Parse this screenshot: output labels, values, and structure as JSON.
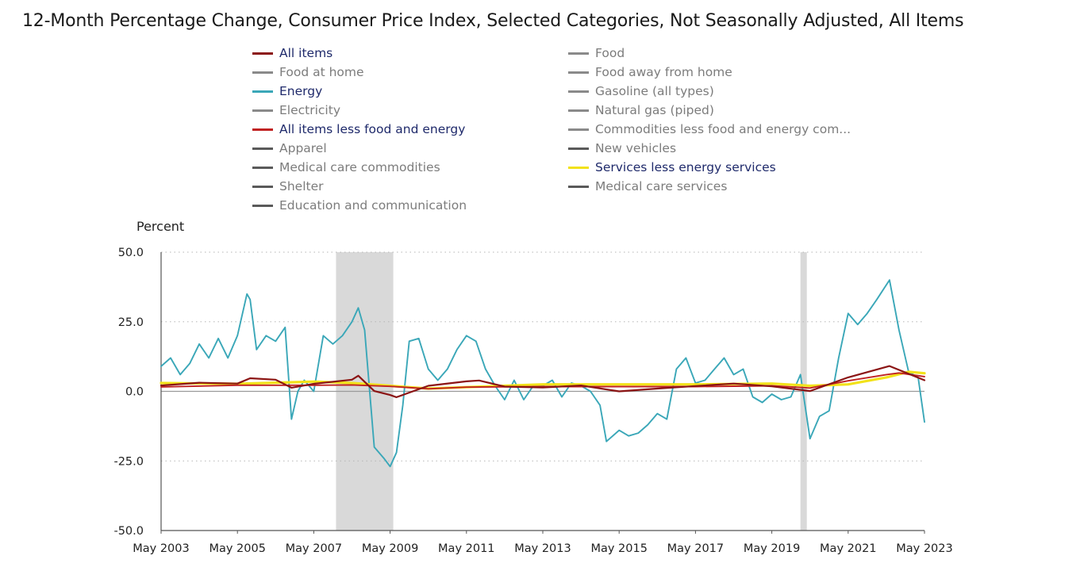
{
  "title": "12-Month Percentage Change, Consumer Price Index, Selected Categories, Not Seasonally Adjusted, All Items",
  "chart_data": {
    "type": "line",
    "ylabel": "Percent",
    "xlabel": "",
    "ylim": [
      -50,
      50
    ],
    "y_ticks": [
      "50.0",
      "25.0",
      "0.0",
      "-25.0",
      "-50.0"
    ],
    "x_ticks": [
      "May 2003",
      "May 2005",
      "May 2007",
      "May 2009",
      "May 2011",
      "May 2013",
      "May 2015",
      "May 2017",
      "May 2019",
      "May 2021",
      "May 2023"
    ],
    "x_range": [
      "2003-05",
      "2023-05"
    ],
    "grid": "horizontal dotted",
    "recessions": [
      {
        "start": "2007-12",
        "end": "2009-06"
      },
      {
        "start": "2020-02",
        "end": "2020-04"
      }
    ],
    "legend": [
      {
        "name": "All items",
        "color": "#8b1414",
        "active": true
      },
      {
        "name": "Food",
        "color": "#8a8a8a",
        "active": false
      },
      {
        "name": "Food at home",
        "color": "#8a8a8a",
        "active": false
      },
      {
        "name": "Food away from home",
        "color": "#8a8a8a",
        "active": false
      },
      {
        "name": "Energy",
        "color": "#3aa7b8",
        "active": true
      },
      {
        "name": "Gasoline (all types)",
        "color": "#8a8a8a",
        "active": false
      },
      {
        "name": "Electricity",
        "color": "#8a8a8a",
        "active": false
      },
      {
        "name": "Natural gas (piped)",
        "color": "#8a8a8a",
        "active": false
      },
      {
        "name": "All items less food and energy",
        "color": "#c02222",
        "active": true
      },
      {
        "name": "Commodities less food and energy com...",
        "color": "#8a8a8a",
        "active": false
      },
      {
        "name": "Apparel",
        "color": "#5a5a5a",
        "active": false
      },
      {
        "name": "New vehicles",
        "color": "#5a5a5a",
        "active": false
      },
      {
        "name": "Medical care commodities",
        "color": "#5a5a5a",
        "active": false
      },
      {
        "name": "Services less energy services",
        "color": "#f2e21a",
        "active": true
      },
      {
        "name": "Shelter",
        "color": "#5a5a5a",
        "active": false
      },
      {
        "name": "Medical care services",
        "color": "#5a5a5a",
        "active": false
      },
      {
        "name": "Education and communication",
        "color": "#5a5a5a",
        "active": false
      }
    ],
    "series": [
      {
        "name": "Energy",
        "color": "#3aa7b8",
        "x": [
          "2003-05",
          "2003-08",
          "2003-11",
          "2004-02",
          "2004-05",
          "2004-08",
          "2004-11",
          "2005-02",
          "2005-05",
          "2005-08",
          "2005-09",
          "2005-11",
          "2006-02",
          "2006-05",
          "2006-08",
          "2006-10",
          "2006-12",
          "2007-02",
          "2007-05",
          "2007-08",
          "2007-11",
          "2008-02",
          "2008-05",
          "2008-07",
          "2008-09",
          "2008-12",
          "2009-03",
          "2009-05",
          "2009-07",
          "2009-09",
          "2009-11",
          "2010-02",
          "2010-05",
          "2010-08",
          "2010-11",
          "2011-02",
          "2011-05",
          "2011-08",
          "2011-11",
          "2012-02",
          "2012-05",
          "2012-08",
          "2012-11",
          "2013-02",
          "2013-05",
          "2013-08",
          "2013-11",
          "2014-02",
          "2014-05",
          "2014-08",
          "2014-11",
          "2015-01",
          "2015-05",
          "2015-08",
          "2015-11",
          "2016-02",
          "2016-05",
          "2016-08",
          "2016-11",
          "2017-02",
          "2017-05",
          "2017-08",
          "2017-11",
          "2018-02",
          "2018-05",
          "2018-08",
          "2018-11",
          "2019-02",
          "2019-05",
          "2019-08",
          "2019-11",
          "2020-02",
          "2020-05",
          "2020-08",
          "2020-11",
          "2021-02",
          "2021-05",
          "2021-08",
          "2021-11",
          "2022-02",
          "2022-06",
          "2022-09",
          "2022-12",
          "2023-03",
          "2023-05"
        ],
        "values": [
          9,
          12,
          6,
          10,
          17,
          12,
          19,
          12,
          20,
          35,
          33,
          15,
          20,
          18,
          23,
          -10,
          0,
          4,
          0,
          20,
          17,
          20,
          25,
          30,
          22,
          -20,
          -24,
          -27,
          -22,
          -5,
          18,
          19,
          8,
          4,
          8,
          15,
          20,
          18,
          8,
          2,
          -3,
          4,
          -3,
          2,
          2,
          4,
          -2,
          3,
          2,
          0,
          -5,
          -18,
          -14,
          -16,
          -15,
          -12,
          -8,
          -10,
          8,
          12,
          3,
          4,
          8,
          12,
          6,
          8,
          -2,
          -4,
          -1,
          -3,
          -2,
          6,
          -17,
          -9,
          -7,
          12,
          28,
          24,
          28,
          33,
          40,
          22,
          7,
          5,
          -11
        ]
      },
      {
        "name": "Services less energy services",
        "color": "#f2e21a",
        "x": [
          "2003-05",
          "2005-05",
          "2007-05",
          "2008-05",
          "2009-05",
          "2010-05",
          "2011-05",
          "2013-05",
          "2015-05",
          "2017-05",
          "2019-05",
          "2020-05",
          "2021-05",
          "2022-05",
          "2022-12",
          "2023-05"
        ],
        "values": [
          3,
          2.7,
          3.5,
          3,
          2,
          1,
          1.5,
          2.5,
          2.5,
          2.5,
          2.8,
          2,
          2.5,
          5,
          7,
          6.5
        ]
      },
      {
        "name": "All items less food and energy",
        "color": "#c02222",
        "x": [
          "2003-05",
          "2005-05",
          "2007-05",
          "2008-05",
          "2009-05",
          "2010-05",
          "2011-05",
          "2013-05",
          "2015-05",
          "2017-05",
          "2019-05",
          "2020-05",
          "2021-05",
          "2022-05",
          "2022-09",
          "2023-05"
        ],
        "values": [
          1.6,
          2.2,
          2.2,
          2.3,
          1.8,
          0.9,
          1.5,
          1.7,
          1.7,
          1.7,
          2,
          1.2,
          3.8,
          6,
          6.6,
          5.3
        ]
      },
      {
        "name": "All items",
        "color": "#8b1414",
        "x": [
          "2003-05",
          "2004-05",
          "2005-05",
          "2005-09",
          "2006-05",
          "2006-10",
          "2007-05",
          "2008-05",
          "2008-07",
          "2008-12",
          "2009-05",
          "2009-07",
          "2010-05",
          "2011-05",
          "2011-09",
          "2012-05",
          "2013-05",
          "2014-05",
          "2015-05",
          "2016-05",
          "2017-05",
          "2018-05",
          "2019-05",
          "2020-05",
          "2021-05",
          "2022-06",
          "2023-05"
        ],
        "values": [
          2.1,
          3.1,
          2.8,
          4.7,
          4.2,
          1.3,
          2.7,
          4.2,
          5.6,
          0.1,
          -1.3,
          -2.1,
          2,
          3.6,
          3.9,
          1.7,
          1.4,
          2.1,
          0,
          1,
          1.9,
          2.8,
          1.8,
          0.1,
          5,
          9.1,
          4
        ]
      }
    ]
  }
}
